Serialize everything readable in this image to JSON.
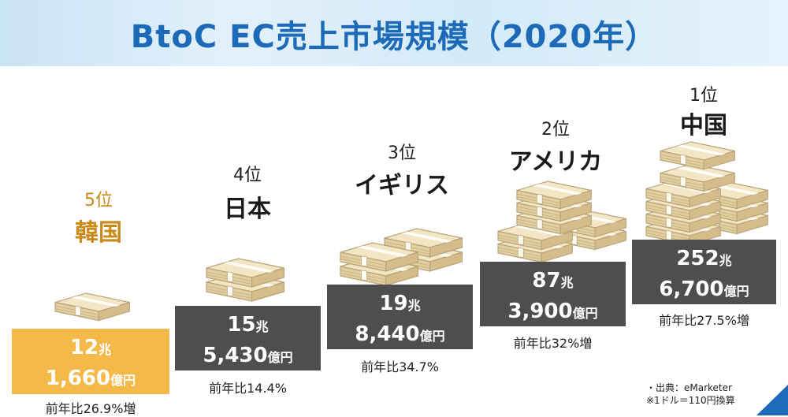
{
  "title": "BtoC EC売上市場規模（2020年）",
  "entries": [
    {
      "rank": "5位",
      "country": "韓国",
      "value_cho": "12",
      "value_oku": "1,660",
      "unit_cho": "兆",
      "unit_oku": "億円",
      "growth": "前年比26.9%増"
    },
    {
      "rank": "4位",
      "country": "日本",
      "value_cho": "15",
      "value_oku": "5,430",
      "unit_cho": "兆",
      "unit_oku": "億円",
      "growth": "前年比14.4%"
    },
    {
      "rank": "3位",
      "country": "イギリス",
      "value_cho": "19",
      "value_oku": "8,440",
      "unit_cho": "兆",
      "unit_oku": "億円",
      "growth": "前年比34.7%"
    },
    {
      "rank": "2位",
      "country": "アメリカ",
      "value_cho": "87",
      "value_oku": "3,900",
      "unit_cho": "兆",
      "unit_oku": "億円",
      "growth": "前年比32%増"
    },
    {
      "rank": "1位",
      "country": "中国",
      "value_cho": "252",
      "value_oku": "6,700",
      "unit_cho": "兆",
      "unit_oku": "億円",
      "growth": "前年比27.5%増"
    }
  ],
  "source": {
    "line1": "・出典：eMarketer",
    "line2": "※1ドル＝110円換算"
  },
  "colors": {
    "title": "#1d6bb8",
    "box": "#4e4e4e",
    "highlight": "#f5b94a",
    "highlight_text": "#c98a1a"
  }
}
